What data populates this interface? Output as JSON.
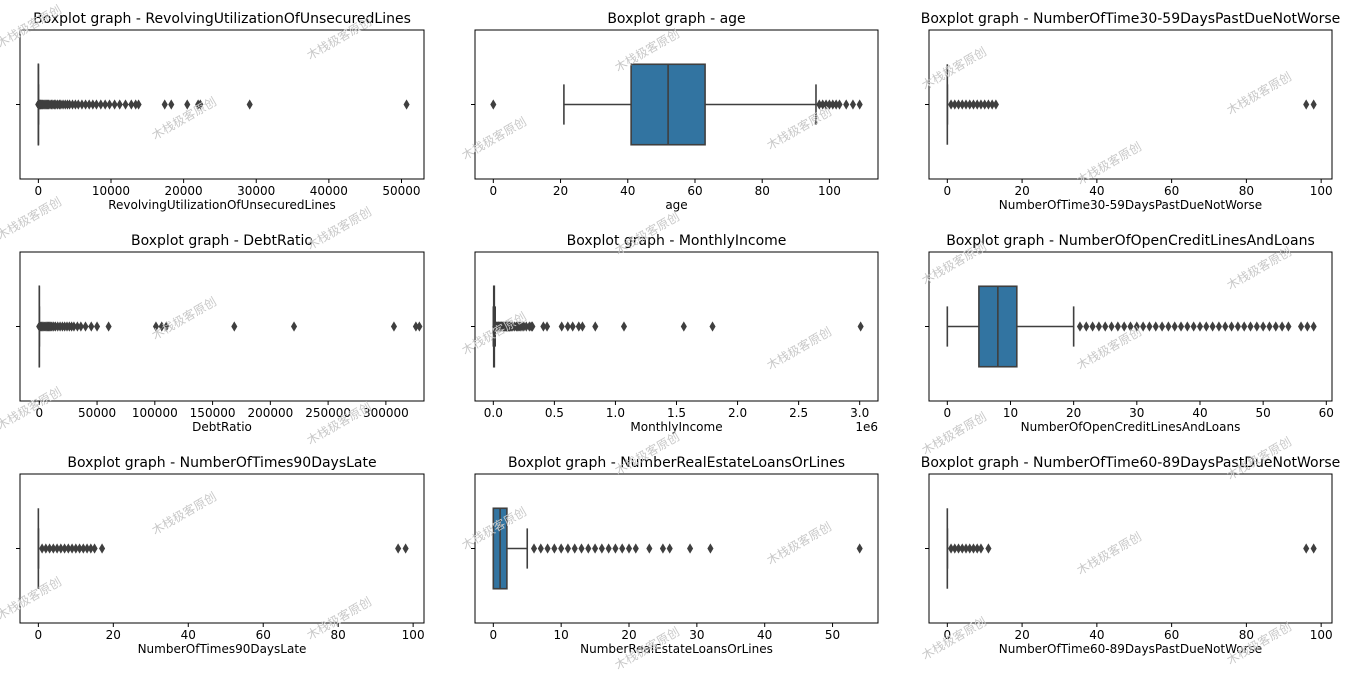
{
  "watermark": "木栈极客原创",
  "colors": {
    "box_fill": "#3274a1",
    "line": "#3f3f3f",
    "frame": "#000000"
  },
  "chart_data": [
    {
      "type": "boxplot",
      "title": "Boxplot graph - RevolvingUtilizationOfUnsecuredLines",
      "xlabel": "RevolvingUtilizationOfUnsecuredLines",
      "xlim": [
        -2530,
        53100
      ],
      "ticks": [
        0,
        10000,
        20000,
        30000,
        40000,
        50000
      ],
      "tick_labels": [
        "0",
        "10000",
        "20000",
        "30000",
        "40000",
        "50000"
      ],
      "offset_label": "",
      "box": {
        "whislo": 0,
        "q1": 0.03,
        "med": 0.15,
        "q3": 0.56,
        "whishi": 1.35
      },
      "outliers": [
        1.6,
        2,
        3,
        5,
        8,
        12,
        20,
        40,
        70,
        110,
        160,
        230,
        300,
        400,
        520,
        650,
        800,
        950,
        1100,
        1250,
        1400,
        1600,
        1800,
        2000,
        2200,
        2400,
        2650,
        2900,
        3100,
        3400,
        3700,
        4000,
        4300,
        4700,
        5100,
        5500,
        6000,
        6500,
        7000,
        7500,
        8000,
        8600,
        9200,
        9800,
        10500,
        11200,
        12000,
        12800,
        13400,
        13800,
        17400,
        18300,
        20500,
        22000,
        22300,
        29100,
        50700
      ]
    },
    {
      "type": "boxplot",
      "title": "Boxplot graph - age",
      "xlabel": "age",
      "xlim": [
        -5.45,
        114.45
      ],
      "ticks": [
        0,
        20,
        40,
        60,
        80,
        100
      ],
      "tick_labels": [
        "0",
        "20",
        "40",
        "60",
        "80",
        "100"
      ],
      "offset_label": "",
      "box": {
        "whislo": 21,
        "q1": 41,
        "med": 52,
        "q3": 63,
        "whishi": 96
      },
      "outliers": [
        0,
        97,
        98,
        99,
        100,
        101,
        102,
        103,
        105,
        107,
        109
      ]
    },
    {
      "type": "boxplot",
      "title": "Boxplot graph - NumberOfTime30-59DaysPastDueNotWorse",
      "xlabel": "NumberOfTime30-59DaysPastDueNotWorse",
      "xlim": [
        -4.9,
        102.9
      ],
      "ticks": [
        0,
        20,
        40,
        60,
        80,
        100
      ],
      "tick_labels": [
        "0",
        "20",
        "40",
        "60",
        "80",
        "100"
      ],
      "offset_label": "",
      "box": {
        "whislo": 0,
        "q1": 0,
        "med": 0,
        "q3": 0,
        "whishi": 0
      },
      "outliers": [
        1,
        2,
        3,
        4,
        5,
        6,
        7,
        8,
        9,
        10,
        11,
        12,
        13,
        96,
        98
      ]
    },
    {
      "type": "boxplot",
      "title": "Boxplot graph - DebtRatio",
      "xlabel": "DebtRatio",
      "xlim": [
        -16700,
        333000
      ],
      "ticks": [
        0,
        50000,
        100000,
        150000,
        200000,
        250000,
        300000
      ],
      "tick_labels": [
        "0",
        "50000",
        "100000",
        "150000",
        "200000",
        "250000",
        "300000"
      ],
      "offset_label": "",
      "box": {
        "whislo": 0,
        "q1": 0.18,
        "med": 0.37,
        "q3": 0.87,
        "whishi": 1.9
      },
      "outliers": [
        2,
        10,
        100,
        500,
        1000,
        2000,
        3000,
        4000,
        5000,
        6000,
        7000,
        8000,
        9000,
        10000,
        11000,
        12500,
        14000,
        16000,
        18000,
        20000,
        22000,
        24000,
        26000,
        28000,
        30000,
        33000,
        36000,
        40000,
        45000,
        50000,
        60000,
        101000,
        106000,
        110000,
        168800,
        220500,
        307000,
        326000,
        329000
      ]
    },
    {
      "type": "boxplot",
      "title": "Boxplot graph - MonthlyIncome",
      "xlabel": "MonthlyIncome",
      "xlim": [
        -150000,
        3150000
      ],
      "ticks": [
        0,
        500000,
        1000000,
        1500000,
        2000000,
        2500000,
        3000000
      ],
      "tick_labels": [
        "0.0",
        "0.5",
        "1.0",
        "1.5",
        "2.0",
        "2.5",
        "3.0"
      ],
      "offset_label": "1e6",
      "box": {
        "whislo": 0,
        "q1": 3400,
        "med": 5400,
        "q3": 8250,
        "whishi": 15500
      },
      "outliers": [
        16000,
        20000,
        25000,
        30000,
        35000,
        40000,
        45000,
        50000,
        55000,
        60000,
        65000,
        70000,
        75000,
        80000,
        85000,
        90000,
        95000,
        100000,
        105000,
        110000,
        115000,
        120000,
        125000,
        130000,
        135000,
        140000,
        150000,
        160000,
        175000,
        190000,
        200000,
        210000,
        220000,
        235000,
        250000,
        270000,
        295000,
        310000,
        320000,
        410000,
        440000,
        560000,
        610000,
        650000,
        700000,
        730000,
        835000,
        1070000,
        1560000,
        1795000,
        3008000
      ]
    },
    {
      "type": "boxplot",
      "title": "Boxplot graph - NumberOfOpenCreditLinesAndLoans",
      "xlabel": "NumberOfOpenCreditLinesAndLoans",
      "xlim": [
        -2.9,
        60.9
      ],
      "ticks": [
        0,
        10,
        20,
        30,
        40,
        50,
        60
      ],
      "tick_labels": [
        "0",
        "10",
        "20",
        "30",
        "40",
        "50",
        "60"
      ],
      "offset_label": "",
      "box": {
        "whislo": 0,
        "q1": 5,
        "med": 8,
        "q3": 11,
        "whishi": 20
      },
      "outliers": [
        21,
        22,
        23,
        24,
        25,
        26,
        27,
        28,
        29,
        30,
        31,
        32,
        33,
        34,
        35,
        36,
        37,
        38,
        39,
        40,
        41,
        42,
        43,
        44,
        45,
        46,
        47,
        48,
        49,
        50,
        51,
        52,
        53,
        54,
        56,
        57,
        58
      ]
    },
    {
      "type": "boxplot",
      "title": "Boxplot graph - NumberOfTimes90DaysLate",
      "xlabel": "NumberOfTimes90DaysLate",
      "xlim": [
        -4.9,
        102.9
      ],
      "ticks": [
        0,
        20,
        40,
        60,
        80,
        100
      ],
      "tick_labels": [
        "0",
        "20",
        "40",
        "60",
        "80",
        "100"
      ],
      "offset_label": "",
      "box": {
        "whislo": 0,
        "q1": 0,
        "med": 0,
        "q3": 0,
        "whishi": 0
      },
      "outliers": [
        1,
        2,
        3,
        4,
        5,
        6,
        7,
        8,
        9,
        10,
        11,
        12,
        13,
        14,
        15,
        17,
        96,
        98
      ]
    },
    {
      "type": "boxplot",
      "title": "Boxplot graph - NumberRealEstateLoansOrLines",
      "xlabel": "NumberRealEstateLoansOrLines",
      "xlim": [
        -2.7,
        56.7
      ],
      "ticks": [
        0,
        10,
        20,
        30,
        40,
        50
      ],
      "tick_labels": [
        "0",
        "10",
        "20",
        "30",
        "40",
        "50"
      ],
      "offset_label": "",
      "box": {
        "whislo": 0,
        "q1": 0,
        "med": 1,
        "q3": 2,
        "whishi": 5
      },
      "outliers": [
        6,
        7,
        8,
        9,
        10,
        11,
        12,
        13,
        14,
        15,
        16,
        17,
        18,
        19,
        20,
        21,
        23,
        25,
        26,
        29,
        32,
        54
      ]
    },
    {
      "type": "boxplot",
      "title": "Boxplot graph - NumberOfTime60-89DaysPastDueNotWorse",
      "xlabel": "NumberOfTime60-89DaysPastDueNotWorse",
      "xlim": [
        -4.9,
        102.9
      ],
      "ticks": [
        0,
        20,
        40,
        60,
        80,
        100
      ],
      "tick_labels": [
        "0",
        "20",
        "40",
        "60",
        "80",
        "100"
      ],
      "offset_label": "",
      "box": {
        "whislo": 0,
        "q1": 0,
        "med": 0,
        "q3": 0,
        "whishi": 0
      },
      "outliers": [
        1,
        2,
        3,
        4,
        5,
        6,
        7,
        8,
        9,
        11,
        96,
        98
      ]
    }
  ]
}
